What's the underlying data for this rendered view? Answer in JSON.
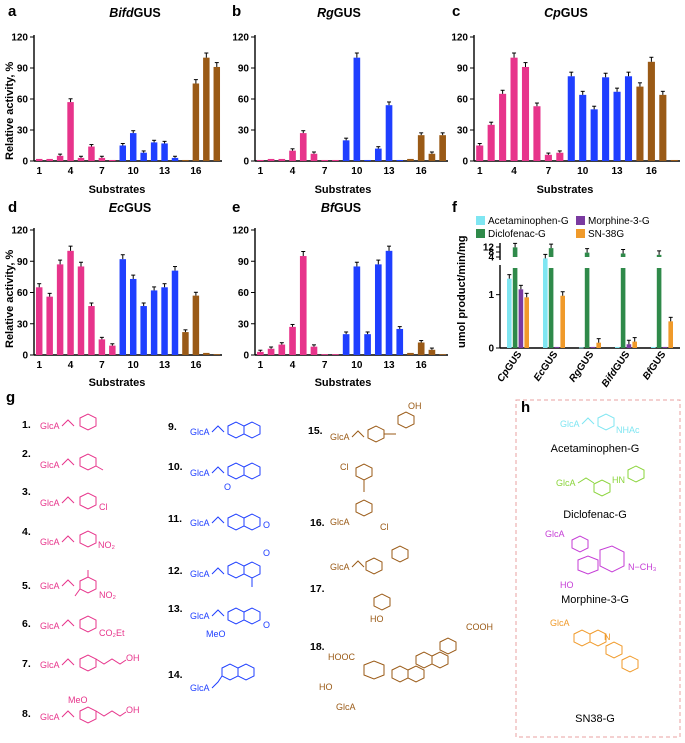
{
  "colors": {
    "pink": "#e7348b",
    "blue": "#1f3fff",
    "brown": "#9a5a16",
    "cyan": "#7fe6f2",
    "dgreen": "#2f8a4a",
    "purple": "#7a3aa0",
    "orange": "#f09a2a",
    "lgreen": "#8ad43a",
    "magenta": "#c53dd6",
    "dashed_border": "#e8a0a0"
  },
  "chart_data": [
    {
      "panel": "a",
      "type": "bar",
      "title_prefix": "Bifd",
      "title_suffix": "GUS",
      "xlabel": "Substrates",
      "ylabel": "Relative activity, %",
      "ylim": [
        0,
        120
      ],
      "yticks": [
        "0",
        "30",
        "60",
        "90",
        "120"
      ],
      "xticks": [
        "1",
        "4",
        "7",
        "10",
        "13",
        "16"
      ],
      "values": [
        2,
        2,
        5,
        57,
        3,
        14,
        3,
        1,
        15,
        27,
        8,
        18,
        17,
        3,
        1,
        75,
        100,
        91
      ]
    },
    {
      "panel": "b",
      "type": "bar",
      "title_prefix": "Rg",
      "title_suffix": "GUS",
      "xlabel": "Substrates",
      "ylabel": "",
      "ylim": [
        0,
        120
      ],
      "yticks": [
        "0",
        "30",
        "60",
        "90",
        "120"
      ],
      "xticks": [
        "1",
        "4",
        "7",
        "10",
        "13",
        "16"
      ],
      "values": [
        1,
        2,
        2,
        10,
        27,
        7,
        1,
        1,
        20,
        100,
        1,
        12,
        54,
        1,
        2,
        25,
        7,
        25
      ]
    },
    {
      "panel": "c",
      "type": "bar",
      "title_prefix": "Cp",
      "title_suffix": "GUS",
      "xlabel": "Substrates",
      "ylabel": "",
      "ylim": [
        0,
        120
      ],
      "yticks": [
        "0",
        "30",
        "60",
        "90",
        "120"
      ],
      "xticks": [
        "1",
        "4",
        "7",
        "10",
        "13",
        "16"
      ],
      "values": [
        15,
        35,
        65,
        100,
        91,
        53,
        6,
        8,
        82,
        64,
        50,
        81,
        67,
        82,
        72,
        96,
        64,
        1
      ]
    },
    {
      "panel": "d",
      "type": "bar",
      "title_prefix": "Ec",
      "title_suffix": "GUS",
      "xlabel": "Substrates",
      "ylabel": "Relative activity, %",
      "ylim": [
        0,
        120
      ],
      "yticks": [
        "0",
        "30",
        "60",
        "90",
        "120"
      ],
      "xticks": [
        "1",
        "4",
        "7",
        "10",
        "13",
        "16"
      ],
      "values": [
        65,
        56,
        87,
        100,
        85,
        47,
        15,
        9,
        92,
        73,
        47,
        62,
        65,
        81,
        22,
        57,
        2,
        0
      ]
    },
    {
      "panel": "e",
      "type": "bar",
      "title_prefix": "Bf",
      "title_suffix": "GUS",
      "xlabel": "Substrates",
      "ylabel": "",
      "ylim": [
        0,
        120
      ],
      "yticks": [
        "0",
        "30",
        "60",
        "90",
        "120"
      ],
      "xticks": [
        "1",
        "4",
        "7",
        "10",
        "13",
        "16"
      ],
      "values": [
        3,
        6,
        10,
        27,
        95,
        8,
        0,
        0,
        20,
        85,
        20,
        87,
        100,
        25,
        2,
        12,
        5,
        0
      ]
    },
    {
      "panel": "f",
      "type": "bar",
      "ylabel": "umol product/min/mg",
      "categories": [
        "CpGUS",
        "EcGUS",
        "RgGUS",
        "BifdGUS",
        "BfGUS"
      ],
      "category_prefix": [
        "Cp",
        "Ec",
        "Rg",
        "Bifd",
        "Bf"
      ],
      "category_suffix": [
        "GUS",
        "GUS",
        "GUS",
        "GUS",
        "GUS"
      ],
      "ytick_labels_lower": [
        "0",
        "1"
      ],
      "ytick_labels_upper": [
        "4",
        "8",
        "12"
      ],
      "legend_labels": [
        "Acetaminophen-G",
        "Diclofenac-G",
        "Morphine-3-G",
        "SN-38G"
      ],
      "series": [
        {
          "name": "Acetaminophen-G",
          "values": [
            1.3,
            3.9,
            0.01,
            0.02,
            0.02
          ]
        },
        {
          "name": "Diclofenac-G",
          "values": [
            11.7,
            11.1,
            7.5,
            6.8,
            5.7
          ]
        },
        {
          "name": "Morphine-3-G",
          "values": [
            1.1,
            0.02,
            0.02,
            0.07,
            0.02
          ]
        },
        {
          "name": "SN-38G",
          "values": [
            0.95,
            0.98,
            0.1,
            0.12,
            0.5
          ]
        }
      ]
    }
  ],
  "panel_g": {
    "label": "g",
    "compounds": [
      {
        "n": "1.",
        "glc": "GlcA",
        "sub": ""
      },
      {
        "n": "2.",
        "glc": "GlcA",
        "sub": ""
      },
      {
        "n": "3.",
        "glc": "GlcA",
        "sub": "Cl"
      },
      {
        "n": "4.",
        "glc": "GlcA",
        "sub": "NO₂"
      },
      {
        "n": "5.",
        "glc": "GlcA",
        "sub": "NO₂"
      },
      {
        "n": "6.",
        "glc": "GlcA",
        "sub": "CO₂Et"
      },
      {
        "n": "7.",
        "glc": "GlcA",
        "sub": "OH"
      },
      {
        "n": "8.",
        "glc": "GlcA",
        "sub": "OH",
        "sub2": "MeO"
      },
      {
        "n": "9.",
        "glc": "GlcA",
        "sub": ""
      },
      {
        "n": "10.",
        "glc": "GlcA",
        "sub": "O"
      },
      {
        "n": "11.",
        "glc": "GlcA",
        "sub": "O"
      },
      {
        "n": "12.",
        "glc": "GlcA",
        "sub": "O"
      },
      {
        "n": "13.",
        "glc": "GlcA",
        "sub": "O",
        "sub2": "MeO"
      },
      {
        "n": "14.",
        "glc": "GlcA",
        "sub": ""
      },
      {
        "n": "15.",
        "glc": "GlcA",
        "sub": "OH"
      },
      {
        "n": "16.",
        "glc": "GlcA",
        "sub": "Cl"
      },
      {
        "n": "17.",
        "glc": "GlcA",
        "sub": "HO"
      },
      {
        "n": "18.",
        "glc": "GlcA",
        "sub": "COOH",
        "sub2": "HOOC",
        "sub3": "HO"
      }
    ]
  },
  "panel_h": {
    "label": "h",
    "items": [
      {
        "name": "Acetaminophen-G",
        "glc": "GlcA",
        "sub": "NHAc"
      },
      {
        "name": "Diclofenac-G",
        "glc": "GlcA",
        "sub": "HN"
      },
      {
        "name": "Morphine-3-G",
        "glc": "GlcA",
        "sub": "N−CH₃",
        "sub2": "HO"
      },
      {
        "name": "SN38-G",
        "glc": "GlcA",
        "sub": "N"
      }
    ]
  }
}
